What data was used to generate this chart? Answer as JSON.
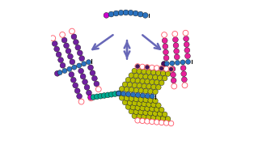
{
  "bg_color": "#ffffff",
  "arrow_color": "#6868b8",
  "colors": {
    "blue": "#2a72bf",
    "purple": "#7020a0",
    "pink_open": "#ff5566",
    "teal": "#00aa90",
    "yellow_green": "#b8be00",
    "magenta": "#cc00cc",
    "dark_purple": "#4a1060",
    "hot_pink": "#e8209a",
    "navy": "#3030a0"
  },
  "bead_r": 0.018,
  "bb_r": 0.016
}
